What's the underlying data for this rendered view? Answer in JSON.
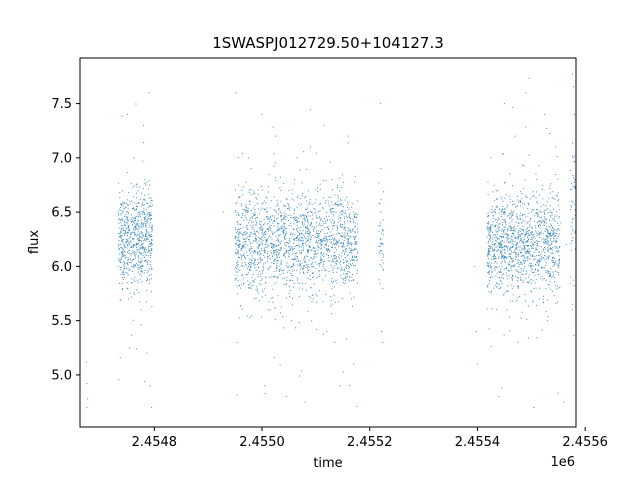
{
  "chart_data": {
    "type": "scatter",
    "title": "1SWASPJ012729.50+104127.3",
    "xlabel": "time",
    "ylabel": "flux",
    "x_offset_label": "1e6",
    "xlim": [
      2454662,
      2455583
    ],
    "ylim": [
      4.52,
      7.92
    ],
    "x_ticks": [
      2454800,
      2455000,
      2455200,
      2455400,
      2455600
    ],
    "x_tick_labels": [
      "2.4548",
      "2.4550",
      "2.4552",
      "2.4554",
      "2.4556"
    ],
    "y_ticks": [
      5.0,
      5.5,
      6.0,
      6.5,
      7.0,
      7.5
    ],
    "y_tick_labels": [
      "5.0",
      "5.5",
      "6.0",
      "6.5",
      "7.0",
      "7.5"
    ],
    "grid": false,
    "marker_color": "#1f77b4",
    "series": [
      {
        "points": [
          [
            2454674,
            5.12
          ],
          [
            2454675,
            4.92
          ],
          [
            2454675,
            4.7
          ],
          [
            2454676,
            4.78
          ],
          [
            2454734,
            6.2
          ],
          [
            2454736,
            6.05
          ],
          [
            2454738,
            6.4
          ],
          [
            2454740,
            5.95
          ],
          [
            2454742,
            6.55
          ],
          [
            2454744,
            6.3
          ],
          [
            2454746,
            6.1
          ],
          [
            2454748,
            6.25
          ],
          [
            2454750,
            7.4
          ],
          [
            2454752,
            5.7
          ],
          [
            2454755,
            6.6
          ],
          [
            2454758,
            6.0
          ],
          [
            2454760,
            6.45
          ],
          [
            2454762,
            7.0
          ],
          [
            2454764,
            5.9
          ],
          [
            2454766,
            6.35
          ],
          [
            2454770,
            6.15
          ],
          [
            2454772,
            6.5
          ],
          [
            2454775,
            5.6
          ],
          [
            2454778,
            6.2
          ],
          [
            2454780,
            7.3
          ],
          [
            2454782,
            6.05
          ],
          [
            2454784,
            6.75
          ],
          [
            2454786,
            5.2
          ],
          [
            2454788,
            6.4
          ],
          [
            2454790,
            7.6
          ],
          [
            2454792,
            4.9
          ],
          [
            2454794,
            6.0
          ],
          [
            2454795,
            4.7
          ],
          [
            2454928,
            6.5
          ],
          [
            2454952,
            7.6
          ],
          [
            2454954,
            5.3
          ],
          [
            2454956,
            6.3
          ],
          [
            2454960,
            5.8
          ],
          [
            2454963,
            6.7
          ],
          [
            2454966,
            6.1
          ],
          [
            2454970,
            6.45
          ],
          [
            2454975,
            6.0
          ],
          [
            2454980,
            6.9
          ],
          [
            2454985,
            5.7
          ],
          [
            2454990,
            6.4
          ],
          [
            2454995,
            6.2
          ],
          [
            2455000,
            7.4
          ],
          [
            2455005,
            4.9
          ],
          [
            2455010,
            6.5
          ],
          [
            2455015,
            5.6
          ],
          [
            2455020,
            6.3
          ],
          [
            2455025,
            7.2
          ],
          [
            2455030,
            5.9
          ],
          [
            2455035,
            6.6
          ],
          [
            2455040,
            6.1
          ],
          [
            2455045,
            4.8
          ],
          [
            2455050,
            6.7
          ],
          [
            2455055,
            5.5
          ],
          [
            2455060,
            6.25
          ],
          [
            2455065,
            7.0
          ],
          [
            2455070,
            5.8
          ],
          [
            2455075,
            6.4
          ],
          [
            2455080,
            4.75
          ],
          [
            2455085,
            6.0
          ],
          [
            2455090,
            7.1
          ],
          [
            2455095,
            5.7
          ],
          [
            2455100,
            6.5
          ],
          [
            2455110,
            6.2
          ],
          [
            2455115,
            7.3
          ],
          [
            2455120,
            5.4
          ],
          [
            2455125,
            6.05
          ],
          [
            2455130,
            6.8
          ],
          [
            2455135,
            5.3
          ],
          [
            2455140,
            6.35
          ],
          [
            2455145,
            4.9
          ],
          [
            2455150,
            6.55
          ],
          [
            2455155,
            5.9
          ],
          [
            2455160,
            7.2
          ],
          [
            2455165,
            6.15
          ],
          [
            2455170,
            5.1
          ],
          [
            2455175,
            6.45
          ],
          [
            2455220,
            7.5
          ],
          [
            2455221,
            6.9
          ],
          [
            2455222,
            5.4
          ],
          [
            2455223,
            6.2
          ],
          [
            2455224,
            5.3
          ],
          [
            2455395,
            6.0
          ],
          [
            2455398,
            5.4
          ],
          [
            2455400,
            5.1
          ],
          [
            2455420,
            6.4
          ],
          [
            2455425,
            7.0
          ],
          [
            2455430,
            5.8
          ],
          [
            2455435,
            6.7
          ],
          [
            2455440,
            4.8
          ],
          [
            2455445,
            6.2
          ],
          [
            2455450,
            7.5
          ],
          [
            2455455,
            5.6
          ],
          [
            2455460,
            6.45
          ],
          [
            2455465,
            6.05
          ],
          [
            2455470,
            7.2
          ],
          [
            2455475,
            5.3
          ],
          [
            2455480,
            6.6
          ],
          [
            2455485,
            6.1
          ],
          [
            2455490,
            7.6
          ],
          [
            2455495,
            5.9
          ],
          [
            2455500,
            6.3
          ],
          [
            2455505,
            4.7
          ],
          [
            2455510,
            6.8
          ],
          [
            2455515,
            5.7
          ],
          [
            2455520,
            6.25
          ],
          [
            2455525,
            7.4
          ],
          [
            2455530,
            5.5
          ],
          [
            2455535,
            6.5
          ],
          [
            2455540,
            6.0
          ],
          [
            2455545,
            7.1
          ],
          [
            2455550,
            5.8
          ],
          [
            2455555,
            6.4
          ],
          [
            2455560,
            4.75
          ],
          [
            2455565,
            6.2
          ],
          [
            2455575,
            6.6
          ],
          [
            2455578,
            7.0
          ],
          [
            2455580,
            7.4
          ],
          [
            2455581,
            6.8
          ]
        ]
      }
    ],
    "clusters": [
      {
        "x_range": [
          2454733,
          2454797
        ],
        "y_center": 6.25,
        "y_spread": 0.22,
        "density": 650,
        "outlier_frac": 0.07
      },
      {
        "x_range": [
          2454950,
          2455178
        ],
        "y_center": 6.22,
        "y_spread": 0.23,
        "density": 1700,
        "outlier_frac": 0.06
      },
      {
        "x_range": [
          2455217,
          2455226
        ],
        "y_center": 6.3,
        "y_spread": 0.25,
        "density": 40,
        "outlier_frac": 0.15
      },
      {
        "x_range": [
          2455418,
          2455553
        ],
        "y_center": 6.2,
        "y_spread": 0.22,
        "density": 1200,
        "outlier_frac": 0.07
      },
      {
        "x_range": [
          2455572,
          2455582
        ],
        "y_center": 6.5,
        "y_spread": 0.3,
        "density": 50,
        "outlier_frac": 0.25
      }
    ]
  }
}
